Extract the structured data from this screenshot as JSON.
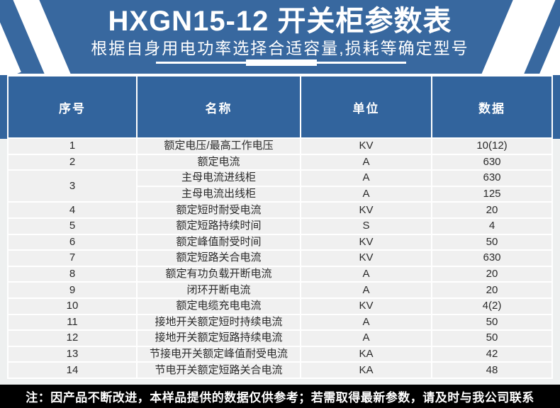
{
  "banner": {
    "title": "HXGN15-12 开关柜参数表",
    "subtitle": "根据自身用电功率选择合适容量,损耗等确定型号"
  },
  "theme": {
    "banner_bg": "#38689f",
    "header_bg": "#32649d",
    "row_bg": "#f0f0f0",
    "stripe": "#ffffff",
    "note_bg": "#000000",
    "note_fg": "#ffffff"
  },
  "table": {
    "columns": [
      "序号",
      "名称",
      "单位",
      "数据"
    ],
    "rows": [
      {
        "no": "1",
        "name": "额定电压/最高工作电压",
        "unit": "KV",
        "value": "10(12)"
      },
      {
        "no": "2",
        "name": "额定电流",
        "unit": "A",
        "value": "630"
      },
      {
        "no": "3",
        "name": "主母电流进线柜",
        "unit": "A",
        "value": "630",
        "rowspan": 2
      },
      {
        "no": "",
        "name": "主母电流出线柜",
        "unit": "A",
        "value": "125",
        "merged": true
      },
      {
        "no": "4",
        "name": "额定短时耐受电流",
        "unit": "KV",
        "value": "20"
      },
      {
        "no": "5",
        "name": "额定短路持续时间",
        "unit": "S",
        "value": "4"
      },
      {
        "no": "6",
        "name": "额定峰值耐受时间",
        "unit": "KV",
        "value": "50"
      },
      {
        "no": "7",
        "name": "额定短路关合电流",
        "unit": "KV",
        "value": "630"
      },
      {
        "no": "8",
        "name": "额定有功负载开断电流",
        "unit": "A",
        "value": "20"
      },
      {
        "no": "9",
        "name": "闭环开断电流",
        "unit": "A",
        "value": "20"
      },
      {
        "no": "10",
        "name": "额定电缆充电电流",
        "unit": "KV",
        "value": "4(2)"
      },
      {
        "no": "11",
        "name": "接地开关额定短时持续电流",
        "unit": "A",
        "value": "50"
      },
      {
        "no": "12",
        "name": "接地开关额定短路持续电流",
        "unit": "A",
        "value": "50"
      },
      {
        "no": "13",
        "name": "节接电开关额定峰值耐受电流",
        "unit": "KA",
        "value": "42"
      },
      {
        "no": "14",
        "name": "节电开关额定短路关合电流",
        "unit": "KA",
        "value": "48"
      }
    ]
  },
  "note": {
    "text": "注：因产品不断改进，本样品提供的数据仅供参考；若需取得最新参数，请及时与我公司联系"
  }
}
